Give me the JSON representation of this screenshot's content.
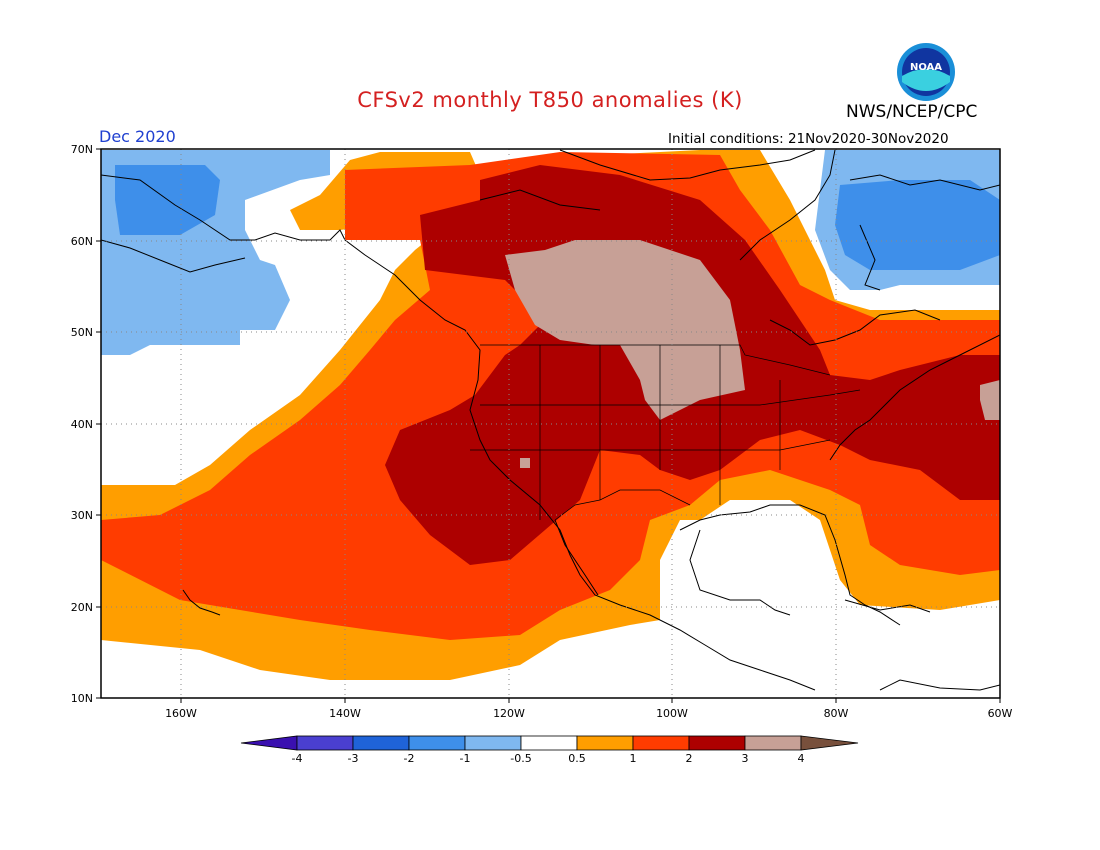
{
  "header": {
    "title": "CFSv2 monthly T850 anomalies (K)",
    "agency": "NWS/NCEP/CPC",
    "month": "Dec 2020",
    "initial_conditions": "Initial conditions: 21Nov2020-30Nov2020",
    "logo_text": "NOAA"
  },
  "map": {
    "lat_labels": [
      "70N",
      "60N",
      "50N",
      "40N",
      "30N",
      "20N",
      "10N"
    ],
    "lon_labels": [
      "160W",
      "140W",
      "120W",
      "100W",
      "80W",
      "60W"
    ],
    "extent": {
      "lon": [
        -172,
        -60
      ],
      "lat": [
        10,
        70
      ]
    }
  },
  "colorbar": {
    "levels": [
      "-4",
      "-3",
      "-2",
      "-1",
      "-0.5",
      "0.5",
      "1",
      "2",
      "3",
      "4"
    ],
    "colors": [
      "#3a10b0",
      "#4a3fd0",
      "#1f63d8",
      "#3e8fea",
      "#7fb8f0",
      "#ffffff",
      "#ff9e00",
      "#ff3c00",
      "#ad0000",
      "#c7a096",
      "#78503c"
    ]
  },
  "colors": {
    "title_red": "#d42020",
    "month_blue": "#2040d0"
  }
}
